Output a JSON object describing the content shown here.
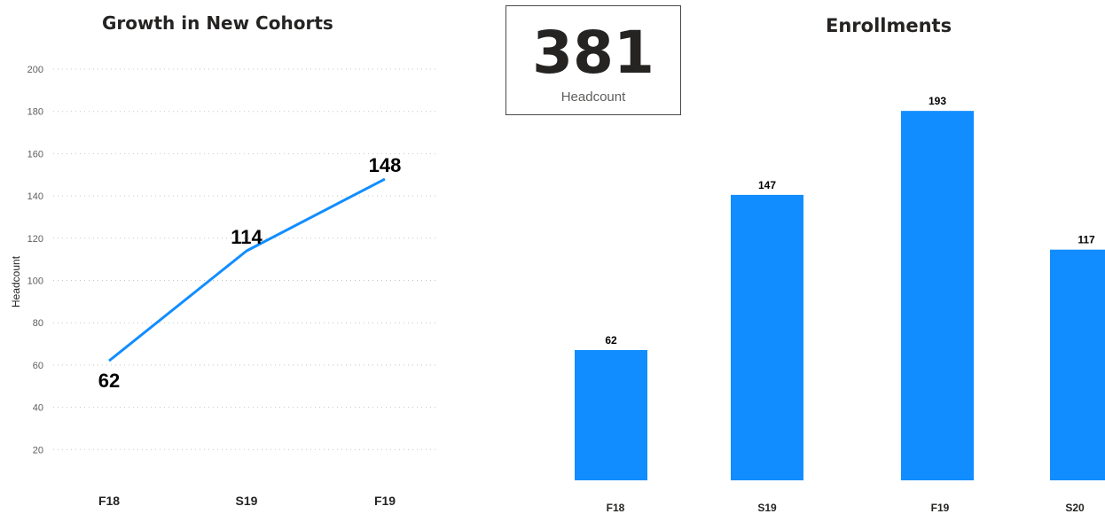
{
  "chart_data": [
    {
      "type": "line",
      "title": "Growth in New Cohorts",
      "ylabel": "Headcount",
      "xlabel": "",
      "categories": [
        "F18",
        "S19",
        "F19"
      ],
      "values": [
        62,
        114,
        148
      ],
      "data_labels": [
        "62",
        "114",
        "148"
      ],
      "yticks": [
        "20",
        "40",
        "60",
        "80",
        "100",
        "120",
        "140",
        "160",
        "180",
        "200"
      ],
      "ylim": [
        0,
        200
      ],
      "grid": true,
      "color": "#118DFF"
    },
    {
      "type": "bar",
      "title": "Enrollments",
      "categories": [
        "F18",
        "S19",
        "F19",
        "S20"
      ],
      "values": [
        62,
        147,
        193,
        117
      ],
      "data_labels": [
        "62",
        "147",
        "193",
        "117"
      ],
      "grid": false,
      "color": "#118DFF"
    }
  ],
  "card": {
    "value": "381",
    "label": "Headcount"
  }
}
